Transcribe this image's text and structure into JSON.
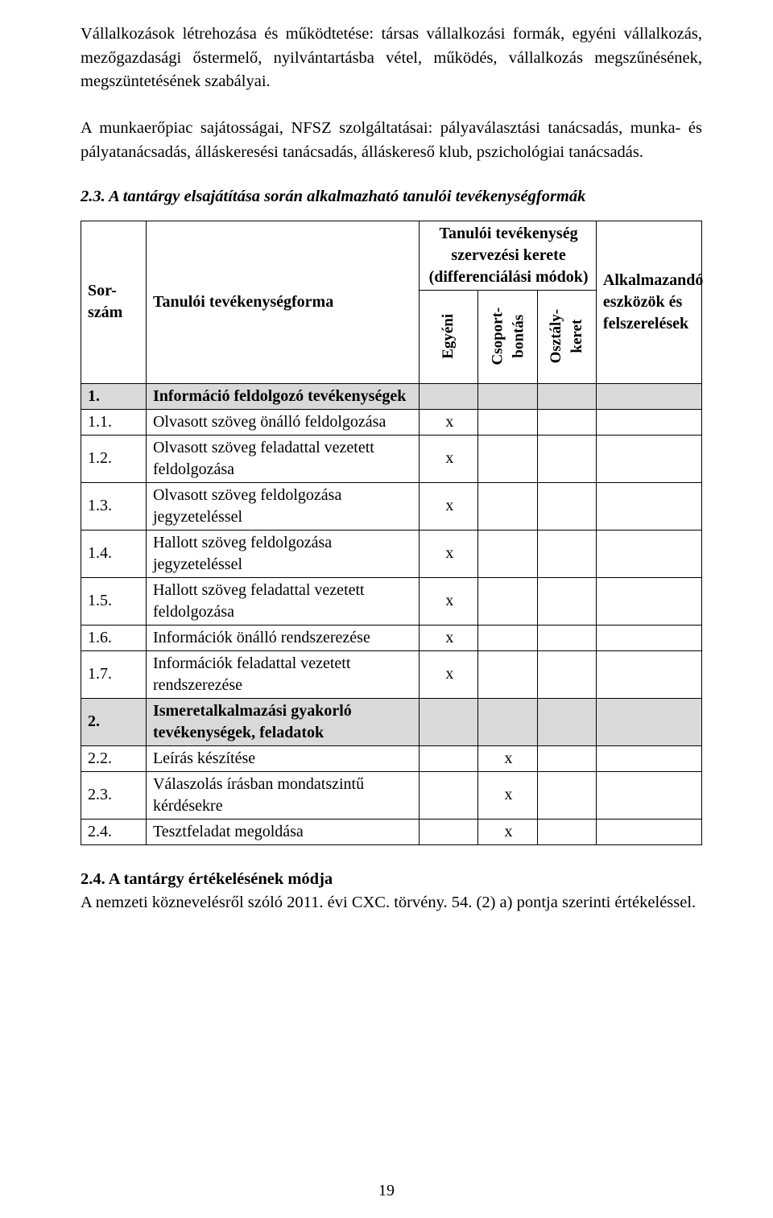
{
  "intro_paragraphs": [
    "Vállalkozások létrehozása és működtetése: társas vállalkozási formák, egyéni vállalkozás, mezőgazdasági őstermelő, nyilvántartásba vétel, működés, vállalkozás megszűnésének, megszüntetésének szabályai.",
    "A munkaerőpiac sajátosságai, NFSZ szolgáltatásai: pályaválasztási tanácsadás, munka- és pályatanácsadás, álláskeresési tanácsadás, álláskereső klub, pszichológiai tanácsadás."
  ],
  "section_2_3": "2.3. A tantárgy elsajátítása során alkalmazható tanulói tevékenységformák",
  "table": {
    "headers": {
      "sor": "Sor-\nszám",
      "forma": "Tanulói tevékenységforma",
      "group": "Tanulói tevékenység szervezési kerete (differenciálási módok)",
      "egyeni": "Egyéni",
      "csoport": "Csoport-\nbontás",
      "osztaly": "Osztály-\nkeret",
      "alk": "Alkalmazandó eszközök és felszerelések"
    },
    "rows": [
      {
        "n": "1.",
        "name": "Információ feldolgozó tevékenységek",
        "e": "",
        "cs": "",
        "o": "",
        "shade": true
      },
      {
        "n": "1.1.",
        "name": "Olvasott szöveg önálló feldolgozása",
        "e": "x",
        "cs": "",
        "o": "",
        "shade": false
      },
      {
        "n": "1.2.",
        "name": "Olvasott szöveg feladattal vezetett feldolgozása",
        "e": "x",
        "cs": "",
        "o": "",
        "shade": false
      },
      {
        "n": "1.3.",
        "name": "Olvasott szöveg feldolgozása jegyzeteléssel",
        "e": "x",
        "cs": "",
        "o": "",
        "shade": false
      },
      {
        "n": "1.4.",
        "name": "Hallott szöveg feldolgozása jegyzeteléssel",
        "e": "x",
        "cs": "",
        "o": "",
        "shade": false
      },
      {
        "n": "1.5.",
        "name": "Hallott szöveg feladattal vezetett feldolgozása",
        "e": "x",
        "cs": "",
        "o": "",
        "shade": false
      },
      {
        "n": "1.6.",
        "name": "Információk önálló rendszerezése",
        "e": "x",
        "cs": "",
        "o": "",
        "shade": false
      },
      {
        "n": "1.7.",
        "name": "Információk feladattal vezetett rendszerezése",
        "e": "x",
        "cs": "",
        "o": "",
        "shade": false
      },
      {
        "n": "2.",
        "name": "Ismeretalkalmazási gyakorló tevékenységek, feladatok",
        "e": "",
        "cs": "",
        "o": "",
        "shade": true
      },
      {
        "n": "2.2.",
        "name": "Leírás készítése",
        "e": "",
        "cs": "x",
        "o": "",
        "shade": false
      },
      {
        "n": "2.3.",
        "name": "Válaszolás írásban mondatszintű kérdésekre",
        "e": "",
        "cs": "x",
        "o": "",
        "shade": false
      },
      {
        "n": "2.4.",
        "name": "Tesztfeladat megoldása",
        "e": "",
        "cs": "x",
        "o": "",
        "shade": false
      }
    ]
  },
  "section_2_4_heading": "2.4. A tantárgy értékelésének módja",
  "section_2_4_text": "A nemzeti köznevelésről szóló 2011. évi CXC. törvény. 54. (2) a) pontja szerinti értékeléssel.",
  "page_number": "19"
}
